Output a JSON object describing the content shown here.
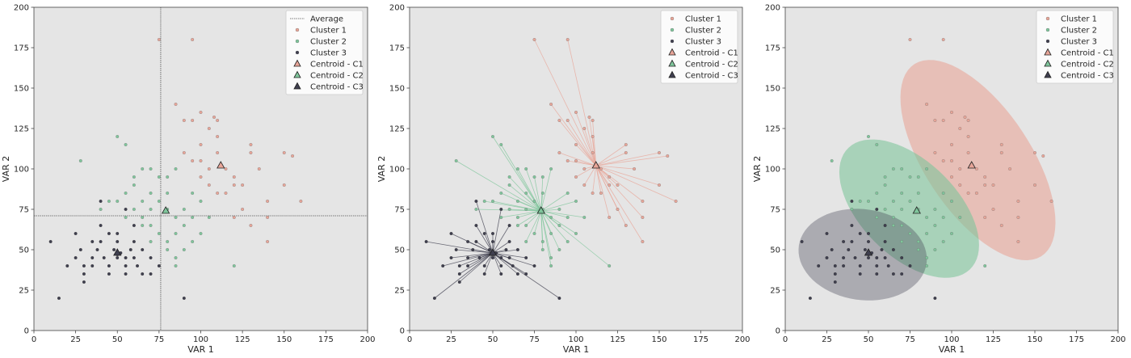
{
  "colors": {
    "cluster1": "#e8a598",
    "cluster2": "#7fc59b",
    "cluster3": "#3f3f4f",
    "centroid": "#3a4a46",
    "average_line": "#555555",
    "panel_bg": "#e5e5e5"
  },
  "chart_data": [
    {
      "type": "scatter",
      "xlabel": "VAR 1",
      "ylabel": "VAR 2",
      "xlim": [
        0,
        200
      ],
      "ylim": [
        0,
        200
      ],
      "xticks": [
        "0",
        "25",
        "50",
        "75",
        "100",
        "125",
        "150",
        "175",
        "200"
      ],
      "yticks": [
        "0",
        "25",
        "50",
        "75",
        "100",
        "125",
        "150",
        "175",
        "200"
      ],
      "legend": [
        "Average",
        "Cluster 1",
        "Cluster 2",
        "Cluster 3",
        "Centroid - C1",
        "Centroid - C2",
        "Centroid - C3"
      ],
      "legend_position": "top-right",
      "average": {
        "x": 76,
        "y": 71
      },
      "series": [
        {
          "name": "Cluster 1",
          "points": [
            [
              75,
              180
            ],
            [
              95,
              180
            ],
            [
              85,
              140
            ],
            [
              90,
              130
            ],
            [
              95,
              130
            ],
            [
              100,
              135
            ],
            [
              105,
              125
            ],
            [
              108,
              132
            ],
            [
              110,
              130
            ],
            [
              110,
              120
            ],
            [
              100,
              115
            ],
            [
              90,
              110
            ],
            [
              95,
              105
            ],
            [
              110,
              110
            ],
            [
              105,
              100
            ],
            [
              100,
              95
            ],
            [
              115,
              100
            ],
            [
              120,
              95
            ],
            [
              120,
              90
            ],
            [
              115,
              85
            ],
            [
              110,
              85
            ],
            [
              105,
              90
            ],
            [
              100,
              105
            ],
            [
              125,
              90
            ],
            [
              130,
              115
            ],
            [
              130,
              110
            ],
            [
              135,
              100
            ],
            [
              140,
              80
            ],
            [
              150,
              110
            ],
            [
              155,
              108
            ],
            [
              150,
              90
            ],
            [
              160,
              80
            ],
            [
              140,
              70
            ],
            [
              125,
              75
            ],
            [
              130,
              65
            ],
            [
              140,
              55
            ],
            [
              120,
              70
            ],
            [
              112,
              102
            ]
          ]
        },
        {
          "name": "Cluster 2",
          "points": [
            [
              28,
              105
            ],
            [
              50,
              120
            ],
            [
              55,
              115
            ],
            [
              60,
              95
            ],
            [
              65,
              100
            ],
            [
              70,
              100
            ],
            [
              75,
              95
            ],
            [
              80,
              95
            ],
            [
              85,
              100
            ],
            [
              80,
              85
            ],
            [
              75,
              80
            ],
            [
              70,
              85
            ],
            [
              65,
              80
            ],
            [
              55,
              85
            ],
            [
              50,
              80
            ],
            [
              60,
              75
            ],
            [
              65,
              70
            ],
            [
              70,
              75
            ],
            [
              80,
              75
            ],
            [
              85,
              70
            ],
            [
              90,
              75
            ],
            [
              95,
              70
            ],
            [
              90,
              65
            ],
            [
              85,
              60
            ],
            [
              80,
              55
            ],
            [
              75,
              60
            ],
            [
              70,
              65
            ],
            [
              65,
              65
            ],
            [
              70,
              55
            ],
            [
              80,
              50
            ],
            [
              85,
              45
            ],
            [
              90,
              50
            ],
            [
              95,
              55
            ],
            [
              100,
              60
            ],
            [
              105,
              70
            ],
            [
              85,
              40
            ],
            [
              120,
              40
            ],
            [
              100,
              80
            ],
            [
              95,
              85
            ],
            [
              60,
              90
            ],
            [
              55,
              70
            ],
            [
              45,
              80
            ],
            [
              40,
              75
            ],
            [
              79,
              74
            ]
          ]
        },
        {
          "name": "Cluster 3",
          "points": [
            [
              10,
              55
            ],
            [
              15,
              20
            ],
            [
              25,
              60
            ],
            [
              28,
              50
            ],
            [
              30,
              40
            ],
            [
              30,
              35
            ],
            [
              30,
              30
            ],
            [
              35,
              45
            ],
            [
              35,
              40
            ],
            [
              38,
              50
            ],
            [
              40,
              55
            ],
            [
              40,
              65
            ],
            [
              40,
              80
            ],
            [
              42,
              45
            ],
            [
              45,
              40
            ],
            [
              45,
              35
            ],
            [
              48,
              50
            ],
            [
              50,
              45
            ],
            [
              50,
              55
            ],
            [
              50,
              60
            ],
            [
              52,
              48
            ],
            [
              55,
              45
            ],
            [
              55,
              40
            ],
            [
              55,
              35
            ],
            [
              58,
              50
            ],
            [
              60,
              55
            ],
            [
              60,
              45
            ],
            [
              62,
              40
            ],
            [
              65,
              35
            ],
            [
              65,
              50
            ],
            [
              70,
              45
            ],
            [
              70,
              35
            ],
            [
              75,
              40
            ],
            [
              60,
              65
            ],
            [
              55,
              75
            ],
            [
              45,
              60
            ],
            [
              35,
              55
            ],
            [
              90,
              20
            ],
            [
              20,
              40
            ],
            [
              25,
              45
            ],
            [
              50,
              47
            ]
          ]
        }
      ],
      "centroids": [
        {
          "name": "Centroid - C1",
          "x": 112,
          "y": 102
        },
        {
          "name": "Centroid - C2",
          "x": 79,
          "y": 74
        },
        {
          "name": "Centroid - C3",
          "x": 50,
          "y": 48
        }
      ]
    },
    {
      "type": "scatter",
      "xlabel": "VAR 1",
      "ylabel": "VAR 2",
      "xlim": [
        0,
        200
      ],
      "ylim": [
        0,
        200
      ],
      "xticks": [
        "0",
        "25",
        "50",
        "75",
        "100",
        "125",
        "150",
        "175",
        "200"
      ],
      "yticks": [
        "0",
        "25",
        "50",
        "75",
        "100",
        "125",
        "150",
        "175",
        "200"
      ],
      "legend": [
        "Cluster 1",
        "Cluster 2",
        "Cluster 3",
        "Centroid - C1",
        "Centroid - C2",
        "Centroid - C3"
      ],
      "legend_position": "top-right",
      "lines_to_centroid": true,
      "same_points_as_chart": 0
    },
    {
      "type": "scatter",
      "xlabel": "VAR 1",
      "ylabel": "VAR 2",
      "xlim": [
        0,
        200
      ],
      "ylim": [
        0,
        200
      ],
      "xticks": [
        "0",
        "25",
        "50",
        "75",
        "100",
        "125",
        "150",
        "175",
        "200"
      ],
      "yticks": [
        "0",
        "25",
        "50",
        "75",
        "100",
        "125",
        "150",
        "175",
        "200"
      ],
      "legend": [
        "Cluster 1",
        "Cluster 2",
        "Cluster 3",
        "Centroid - C1",
        "Centroid - C2",
        "Centroid - C3"
      ],
      "legend_position": "top-right",
      "hull_ellipses": true,
      "same_points_as_chart": 0
    }
  ]
}
